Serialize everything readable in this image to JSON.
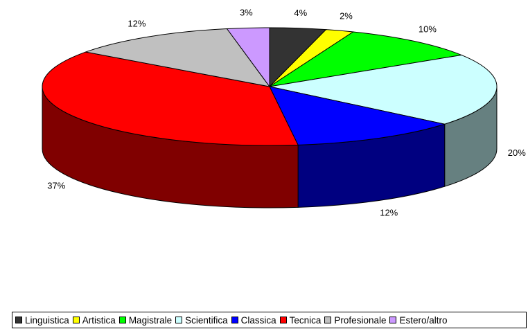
{
  "chart_data": {
    "type": "pie",
    "categories": [
      "Linguistica",
      "Artistica",
      "Magistrale",
      "Scientifica",
      "Classica",
      "Tecnica",
      "Profesionale",
      "Estero/altro"
    ],
    "values": [
      4,
      2,
      10,
      20,
      12,
      37,
      12,
      3
    ],
    "value_labels": [
      "4%",
      "2%",
      "10%",
      "20%",
      "12%",
      "37%",
      "12%",
      "3%"
    ],
    "colors": [
      "#333333",
      "#ffff00",
      "#00ff00",
      "#ccffff",
      "#0000ff",
      "#ff0000",
      "#c0c0c0",
      "#cc99ff"
    ],
    "legend": "bottom"
  }
}
